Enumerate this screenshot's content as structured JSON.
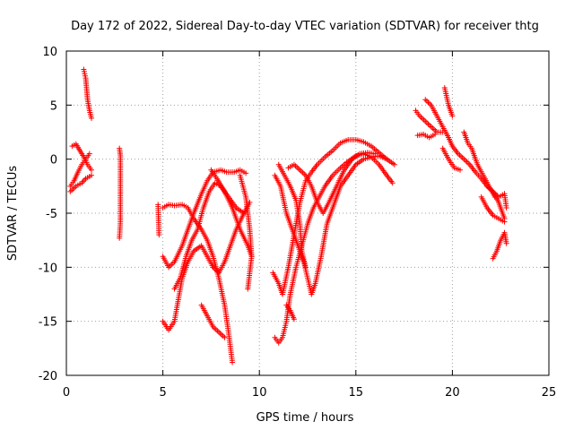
{
  "chart_data": {
    "type": "scatter",
    "title": "Day 172 of 2022, Sidereal Day-to-day VTEC variation (SDTVAR) for receiver thtg",
    "xlabel": "GPS time / hours",
    "ylabel": "SDTVAR / TECUs",
    "xlim": [
      0,
      25
    ],
    "ylim": [
      -20,
      10
    ],
    "xticks": [
      0,
      5,
      10,
      15,
      20,
      25
    ],
    "yticks": [
      -20,
      -15,
      -10,
      -5,
      0,
      5,
      10
    ],
    "xtick_labels": [
      "0",
      "5",
      "10",
      "15",
      "20",
      "25"
    ],
    "ytick_labels": [
      "-20",
      "-15",
      "-10",
      "-5",
      "0",
      "5",
      "10"
    ],
    "grid": true,
    "marker": "+",
    "color": "#ff0000",
    "series": [
      {
        "name": "s1",
        "points": [
          [
            0.2,
            -2.5
          ],
          [
            0.4,
            -2.0
          ],
          [
            0.6,
            -1.2
          ],
          [
            0.8,
            -0.5
          ],
          [
            1.0,
            0.0
          ],
          [
            1.2,
            0.5
          ]
        ]
      },
      {
        "name": "s2",
        "points": [
          [
            0.2,
            -3.0
          ],
          [
            0.5,
            -2.5
          ],
          [
            0.8,
            -2.2
          ],
          [
            1.0,
            -1.8
          ],
          [
            1.3,
            -1.5
          ]
        ]
      },
      {
        "name": "s3",
        "points": [
          [
            0.3,
            1.2
          ],
          [
            0.5,
            1.4
          ],
          [
            0.7,
            0.8
          ],
          [
            0.9,
            0.2
          ],
          [
            1.1,
            -0.5
          ],
          [
            1.3,
            -1.0
          ]
        ]
      },
      {
        "name": "s4",
        "points": [
          [
            0.9,
            8.3
          ],
          [
            1.0,
            7.5
          ],
          [
            1.05,
            6.5
          ],
          [
            1.1,
            5.5
          ],
          [
            1.2,
            4.5
          ],
          [
            1.3,
            3.8
          ]
        ]
      },
      {
        "name": "s5",
        "points": [
          [
            2.75,
            1.0
          ],
          [
            2.8,
            0.3
          ],
          [
            2.8,
            -5.8
          ],
          [
            2.75,
            -7.3
          ]
        ]
      },
      {
        "name": "s6",
        "points": [
          [
            4.75,
            -4.2
          ],
          [
            4.8,
            -7.0
          ]
        ]
      },
      {
        "name": "s7",
        "points": [
          [
            5.0,
            -9.0
          ],
          [
            5.3,
            -10.0
          ],
          [
            5.6,
            -9.5
          ],
          [
            6.0,
            -8.0
          ],
          [
            6.3,
            -6.5
          ],
          [
            6.6,
            -5.0
          ],
          [
            7.0,
            -3.2
          ],
          [
            7.3,
            -2.0
          ],
          [
            7.6,
            -1.2
          ],
          [
            8.0,
            -1.0
          ],
          [
            8.3,
            -1.2
          ],
          [
            8.7,
            -1.2
          ],
          [
            9.0,
            -1.0
          ],
          [
            9.3,
            -1.3
          ]
        ]
      },
      {
        "name": "s8",
        "points": [
          [
            5.0,
            -15.0
          ],
          [
            5.3,
            -15.8
          ],
          [
            5.6,
            -15.0
          ],
          [
            5.8,
            -13.0
          ],
          [
            6.0,
            -11.0
          ],
          [
            6.3,
            -9.5
          ],
          [
            6.6,
            -8.5
          ],
          [
            7.0,
            -8.0
          ],
          [
            7.3,
            -9.0
          ],
          [
            7.6,
            -10.0
          ],
          [
            7.9,
            -10.5
          ],
          [
            8.2,
            -9.5
          ],
          [
            8.5,
            -8.0
          ],
          [
            8.8,
            -6.5
          ],
          [
            9.2,
            -5.0
          ],
          [
            9.5,
            -4.0
          ]
        ]
      },
      {
        "name": "s9",
        "points": [
          [
            5.0,
            -4.5
          ],
          [
            5.3,
            -4.2
          ],
          [
            5.6,
            -4.3
          ],
          [
            6.0,
            -4.2
          ],
          [
            6.3,
            -4.5
          ],
          [
            6.6,
            -5.5
          ],
          [
            7.0,
            -6.5
          ],
          [
            7.3,
            -7.5
          ],
          [
            7.6,
            -9.0
          ],
          [
            7.9,
            -11.0
          ],
          [
            8.2,
            -13.5
          ],
          [
            8.4,
            -16.0
          ],
          [
            8.6,
            -18.8
          ]
        ]
      },
      {
        "name": "s10",
        "points": [
          [
            5.6,
            -12.0
          ],
          [
            5.9,
            -11.0
          ],
          [
            6.2,
            -9.0
          ],
          [
            6.5,
            -7.5
          ],
          [
            6.8,
            -6.5
          ],
          [
            7.1,
            -4.5
          ],
          [
            7.4,
            -3.0
          ],
          [
            7.7,
            -2.2
          ],
          [
            8.0,
            -2.5
          ],
          [
            8.4,
            -3.5
          ],
          [
            8.8,
            -4.5
          ],
          [
            9.2,
            -5.0
          ]
        ]
      },
      {
        "name": "s11",
        "points": [
          [
            7.0,
            -13.5
          ],
          [
            7.3,
            -14.5
          ],
          [
            7.6,
            -15.5
          ],
          [
            7.9,
            -16.0
          ],
          [
            8.2,
            -16.5
          ]
        ]
      },
      {
        "name": "s12",
        "points": [
          [
            7.5,
            -1.0
          ],
          [
            7.8,
            -1.8
          ],
          [
            8.2,
            -3.0
          ],
          [
            8.6,
            -4.5
          ],
          [
            9.0,
            -6.5
          ],
          [
            9.4,
            -8.0
          ],
          [
            9.6,
            -9.0
          ]
        ]
      },
      {
        "name": "s13",
        "points": [
          [
            9.0,
            -1.5
          ],
          [
            9.3,
            -3.5
          ],
          [
            9.5,
            -6.5
          ],
          [
            9.6,
            -9.0
          ],
          [
            9.4,
            -12.0
          ]
        ]
      },
      {
        "name": "s14",
        "points": [
          [
            10.7,
            -10.5
          ],
          [
            11.0,
            -11.5
          ],
          [
            11.2,
            -12.5
          ],
          [
            11.5,
            -10.0
          ],
          [
            11.8,
            -7.0
          ],
          [
            12.1,
            -4.0
          ],
          [
            12.4,
            -2.0
          ],
          [
            12.7,
            -1.2
          ],
          [
            13.0,
            -0.5
          ],
          [
            13.4,
            0.2
          ],
          [
            13.8,
            0.8
          ],
          [
            14.2,
            1.5
          ],
          [
            14.6,
            1.8
          ],
          [
            15.0,
            1.8
          ],
          [
            15.4,
            1.6
          ],
          [
            15.8,
            1.2
          ],
          [
            16.2,
            0.6
          ],
          [
            16.6,
            0.0
          ],
          [
            17.0,
            -0.5
          ]
        ]
      },
      {
        "name": "s15",
        "points": [
          [
            10.8,
            -16.5
          ],
          [
            11.0,
            -17.0
          ],
          [
            11.2,
            -16.5
          ],
          [
            11.4,
            -15.0
          ],
          [
            11.6,
            -12.5
          ],
          [
            11.9,
            -10.0
          ],
          [
            12.2,
            -8.0
          ],
          [
            12.5,
            -6.0
          ],
          [
            12.8,
            -4.5
          ],
          [
            13.1,
            -3.5
          ],
          [
            13.4,
            -2.5
          ],
          [
            13.8,
            -1.5
          ],
          [
            14.2,
            -0.8
          ],
          [
            14.6,
            -0.2
          ],
          [
            15.0,
            0.3
          ],
          [
            15.4,
            0.5
          ],
          [
            15.8,
            0.2
          ],
          [
            16.2,
            -0.5
          ],
          [
            16.6,
            -1.5
          ],
          [
            16.9,
            -2.2
          ]
        ]
      },
      {
        "name": "s16",
        "points": [
          [
            10.8,
            -1.5
          ],
          [
            11.1,
            -2.5
          ],
          [
            11.4,
            -5.0
          ],
          [
            11.7,
            -6.5
          ],
          [
            12.0,
            -8.0
          ],
          [
            12.3,
            -9.5
          ],
          [
            12.5,
            -11.0
          ],
          [
            12.7,
            -12.5
          ],
          [
            12.9,
            -11.5
          ],
          [
            13.2,
            -9.0
          ],
          [
            13.5,
            -6.0
          ],
          [
            13.8,
            -4.5
          ],
          [
            14.2,
            -2.5
          ],
          [
            14.6,
            -1.5
          ],
          [
            15.0,
            -0.5
          ],
          [
            15.4,
            0.0
          ],
          [
            15.8,
            0.2
          ],
          [
            16.2,
            0.3
          ],
          [
            16.6,
            0.0
          ]
        ]
      },
      {
        "name": "s17",
        "points": [
          [
            11.4,
            -13.5
          ],
          [
            11.6,
            -14.0
          ],
          [
            11.8,
            -14.8
          ]
        ]
      },
      {
        "name": "s18",
        "points": [
          [
            11.0,
            -0.5
          ],
          [
            11.3,
            -1.5
          ],
          [
            11.6,
            -2.5
          ],
          [
            11.9,
            -3.8
          ],
          [
            12.1,
            -6.0
          ],
          [
            12.2,
            -8.5
          ],
          [
            12.4,
            -10.0
          ]
        ]
      },
      {
        "name": "s19",
        "points": [
          [
            11.5,
            -0.8
          ],
          [
            11.8,
            -0.5
          ],
          [
            12.1,
            -1.0
          ],
          [
            12.4,
            -1.5
          ],
          [
            12.7,
            -2.5
          ],
          [
            13.0,
            -4.0
          ],
          [
            13.3,
            -5.0
          ],
          [
            13.6,
            -4.0
          ],
          [
            14.0,
            -2.5
          ],
          [
            14.4,
            -1.0
          ],
          [
            14.8,
            0.0
          ],
          [
            15.2,
            0.5
          ],
          [
            15.6,
            0.6
          ],
          [
            16.0,
            0.5
          ]
        ]
      },
      {
        "name": "s20",
        "points": [
          [
            18.1,
            4.5
          ],
          [
            18.3,
            4.0
          ],
          [
            18.6,
            3.5
          ],
          [
            18.9,
            3.0
          ],
          [
            19.2,
            2.5
          ],
          [
            19.5,
            2.5
          ]
        ]
      },
      {
        "name": "s21",
        "points": [
          [
            18.2,
            2.2
          ],
          [
            18.5,
            2.3
          ],
          [
            18.8,
            2.0
          ],
          [
            19.1,
            2.3
          ]
        ]
      },
      {
        "name": "s22",
        "points": [
          [
            18.6,
            5.5
          ],
          [
            18.9,
            5.0
          ],
          [
            19.2,
            4.0
          ],
          [
            19.5,
            3.0
          ],
          [
            19.8,
            2.0
          ],
          [
            20.0,
            1.2
          ],
          [
            20.3,
            0.5
          ],
          [
            20.6,
            0.0
          ],
          [
            20.9,
            -0.5
          ],
          [
            21.2,
            -1.2
          ],
          [
            21.5,
            -1.8
          ],
          [
            21.8,
            -2.5
          ],
          [
            22.1,
            -3.0
          ],
          [
            22.4,
            -3.5
          ],
          [
            22.7,
            -3.2
          ],
          [
            22.8,
            -4.5
          ]
        ]
      },
      {
        "name": "s23",
        "points": [
          [
            19.6,
            6.6
          ],
          [
            19.8,
            5.0
          ],
          [
            20.0,
            4.0
          ]
        ]
      },
      {
        "name": "s24",
        "points": [
          [
            19.5,
            1.0
          ],
          [
            19.8,
            0.0
          ],
          [
            20.1,
            -0.8
          ],
          [
            20.4,
            -1.0
          ]
        ]
      },
      {
        "name": "s25",
        "points": [
          [
            20.6,
            2.5
          ],
          [
            20.8,
            1.5
          ],
          [
            21.0,
            1.0
          ],
          [
            21.3,
            -0.5
          ],
          [
            21.6,
            -1.5
          ],
          [
            21.9,
            -2.5
          ],
          [
            22.2,
            -3.5
          ]
        ]
      },
      {
        "name": "s26",
        "points": [
          [
            21.5,
            -3.5
          ],
          [
            21.8,
            -4.5
          ],
          [
            22.1,
            -5.2
          ],
          [
            22.4,
            -5.5
          ],
          [
            22.7,
            -5.8
          ]
        ]
      },
      {
        "name": "s27",
        "points": [
          [
            21.8,
            -2.5
          ],
          [
            22.1,
            -3.0
          ],
          [
            22.4,
            -4.0
          ],
          [
            22.7,
            -5.5
          ]
        ]
      },
      {
        "name": "s28",
        "points": [
          [
            22.1,
            -9.2
          ],
          [
            22.3,
            -8.5
          ],
          [
            22.5,
            -7.5
          ],
          [
            22.7,
            -6.8
          ],
          [
            22.8,
            -7.8
          ]
        ]
      }
    ]
  }
}
